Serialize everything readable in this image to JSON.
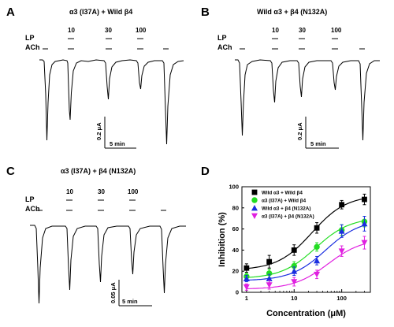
{
  "panels": {
    "A": {
      "letter": "A",
      "title": "α3 (I37A) + Wild β4",
      "scale_y": "0.2 μA",
      "scale_x": "5 min"
    },
    "B": {
      "letter": "B",
      "title": "Wild α3 + β4 (N132A)",
      "scale_y": "0.2 μA",
      "scale_x": "5 min"
    },
    "C": {
      "letter": "C",
      "title": "α3 (I37A) + β4 (N132A)",
      "scale_y": "0.05 μA",
      "scale_x": "5 min"
    },
    "D": {
      "letter": "D"
    }
  },
  "row_labels": {
    "lp": "LP",
    "ach": "ACh"
  },
  "lp_concentrations": [
    "10",
    "30",
    "100"
  ],
  "colors": {
    "wild_wild": "#000000",
    "i37a_wild": "#22dd22",
    "wild_n132a": "#1a2ee0",
    "i37a_n132a": "#e020e0"
  },
  "chart_data": {
    "type": "scatter",
    "xlabel": "Concentration (μM)",
    "ylabel": "Inhibition (%)",
    "xscale": "log",
    "xlim": [
      0.8,
      400
    ],
    "ylim": [
      0,
      100
    ],
    "xticks": [
      1,
      10,
      100
    ],
    "yticks": [
      0,
      20,
      40,
      60,
      80,
      100
    ],
    "legend_position": "top-left",
    "x": [
      1,
      3,
      10,
      30,
      100,
      300
    ],
    "series": [
      {
        "name": "Wild α3 + Wild β4",
        "color": "#000000",
        "marker": "square",
        "values": [
          23,
          29,
          40,
          61,
          83,
          88
        ],
        "errors": [
          4,
          6,
          5,
          5,
          4,
          5
        ]
      },
      {
        "name": "α3 (I37A) + Wild β4",
        "color": "#22dd22",
        "marker": "circle",
        "values": [
          15,
          18,
          25,
          43,
          59,
          67
        ],
        "errors": [
          3,
          4,
          4,
          4,
          5,
          5
        ]
      },
      {
        "name": "Wild α3 + β4 (N132A)",
        "color": "#1a2ee0",
        "marker": "triangle-up",
        "values": [
          13,
          13,
          20,
          30,
          58,
          65
        ],
        "errors": [
          3,
          4,
          4,
          4,
          6,
          7
        ]
      },
      {
        "name": "α3 (I37A) + β4 (N132A)",
        "color": "#e020e0",
        "marker": "triangle-down",
        "values": [
          5,
          7,
          10,
          17,
          39,
          47
        ],
        "errors": [
          3,
          4,
          4,
          4,
          5,
          6
        ]
      }
    ]
  }
}
